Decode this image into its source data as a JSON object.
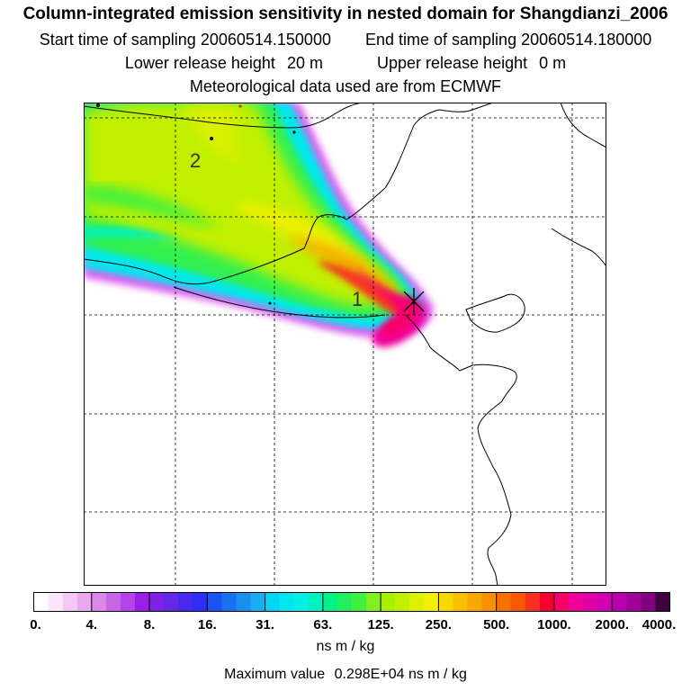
{
  "header": {
    "title": "Column-integrated emission sensitivity in nested domain for Shangdianzi_2006",
    "start_label": "Start time of sampling",
    "start_value": "20060514.150000",
    "end_label": "End time of sampling",
    "end_value": "20060514.180000",
    "lower_label": "Lower release height",
    "lower_value": "20 m",
    "upper_label": "Upper release height",
    "upper_value": "0 m",
    "met_text": "Meteorological data used are from ECMWF"
  },
  "map": {
    "contour_labels": [
      "2",
      "1"
    ],
    "receptor_marker": "receptor-cross",
    "background": "#ffffff"
  },
  "colorbar": {
    "tick_labels": [
      "0.",
      "4.",
      "8.",
      "16.",
      "31.",
      "63.",
      "125.",
      "250.",
      "500.",
      "1000.",
      "2000.",
      "4000."
    ],
    "colors": [
      "#ffffff",
      "#fbe6fb",
      "#f5c8f5",
      "#eaa8f0",
      "#d98ae8",
      "#c865e6",
      "#b443e8",
      "#9a1ee8",
      "#8020e6",
      "#6428e6",
      "#4c28ee",
      "#2f2ef8",
      "#1a52f4",
      "#1a70f0",
      "#1a8ff0",
      "#1aadf2",
      "#00d6f2",
      "#00e6ee",
      "#00f0e6",
      "#00f0c0",
      "#00f08a",
      "#20f060",
      "#40f040",
      "#80f020",
      "#a8f000",
      "#c0f000",
      "#dcf000",
      "#f0f000",
      "#f8d800",
      "#f8c000",
      "#f8a800",
      "#f89000",
      "#f87000",
      "#f85800",
      "#f83020",
      "#f80030",
      "#f8006a",
      "#f0009a",
      "#e000a8",
      "#d000b0",
      "#b800b0",
      "#a00098",
      "#800080",
      "#400040"
    ],
    "units": "ns m / kg",
    "max_label": "Maximum value",
    "max_value": "0.298E+04 ns m / kg"
  }
}
